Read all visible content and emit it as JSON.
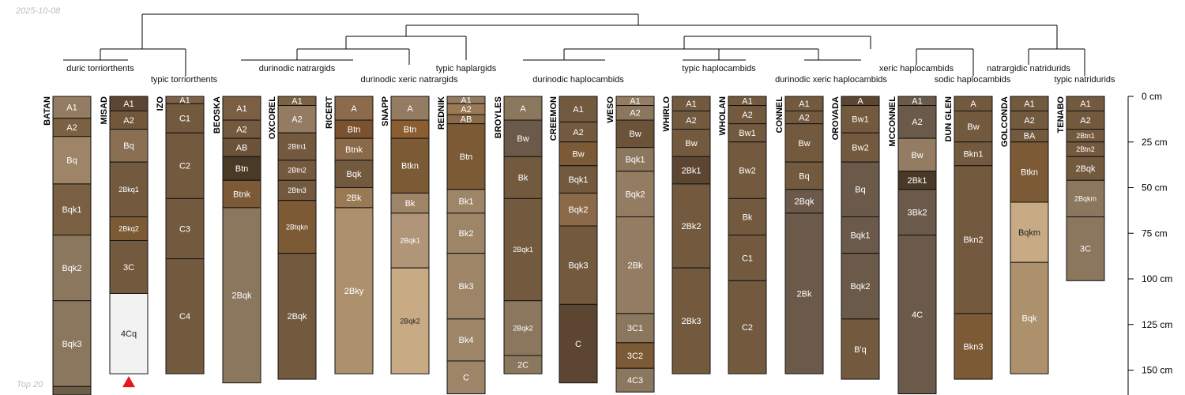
{
  "meta": {
    "date": "2025-10-08",
    "footer": "Top 20"
  },
  "depth_axis": {
    "unit": "cm",
    "ticks": [
      0,
      25,
      50,
      75,
      100,
      125,
      150
    ],
    "labels": [
      "0 cm",
      "25 cm",
      "50 cm",
      "75 cm",
      "100 cm",
      "125 cm",
      "150 cm"
    ]
  },
  "taxa_labels": [
    {
      "id": "duric-torriorthents",
      "text": "duric torriorthents"
    },
    {
      "id": "typic-torriorthents",
      "text": "typic torriorthents"
    },
    {
      "id": "durinodic-natrargids",
      "text": "durinodic natrargids"
    },
    {
      "id": "durinodic-xeric-natrargids",
      "text": "durinodic xeric natrargids"
    },
    {
      "id": "typic-haplargids",
      "text": "typic haplargids"
    },
    {
      "id": "durinodic-haplocambids",
      "text": "durinodic haplocambids"
    },
    {
      "id": "typic-haplocambids",
      "text": "typic haplocambids"
    },
    {
      "id": "durinodic-xeric-haplocambids",
      "text": "durinodic xeric haplocambids"
    },
    {
      "id": "xeric-haplocambids",
      "text": "xeric haplocambids"
    },
    {
      "id": "sodic-haplocambids",
      "text": "sodic haplocambids"
    },
    {
      "id": "natrargidic-natridurids",
      "text": "natrargidic natridurids"
    },
    {
      "id": "typic-natridurids",
      "text": "typic natridurids"
    }
  ],
  "profiles": [
    {
      "name": "BATAN",
      "horizons": [
        {
          "name": "A1",
          "top": 0,
          "bottom": 12,
          "color": "#947c62"
        },
        {
          "name": "A2",
          "top": 12,
          "bottom": 22,
          "color": "#7b6142"
        },
        {
          "name": "Bq",
          "top": 22,
          "bottom": 48,
          "color": "#9e8568"
        },
        {
          "name": "Bqk1",
          "top": 48,
          "bottom": 76,
          "color": "#7a5f42"
        },
        {
          "name": "Bqk2",
          "top": 76,
          "bottom": 112,
          "color": "#8b765e"
        },
        {
          "name": "Bqk3",
          "top": 112,
          "bottom": 159,
          "color": "#8b765e"
        },
        {
          "name": "",
          "top": 159,
          "bottom": 170,
          "color": "#6d5d49"
        }
      ]
    },
    {
      "name": "MISAD",
      "horizons": [
        {
          "name": "A1",
          "top": 0,
          "bottom": 8,
          "color": "#5c4631"
        },
        {
          "name": "A2",
          "top": 8,
          "bottom": 18,
          "color": "#72573c"
        },
        {
          "name": "Bq",
          "top": 18,
          "bottom": 36,
          "color": "#8a6f52"
        },
        {
          "name": "2Bkq1",
          "top": 36,
          "bottom": 66,
          "color": "#735a3f"
        },
        {
          "name": "2Bkq2",
          "top": 66,
          "bottom": 79,
          "color": "#7b5a35"
        },
        {
          "name": "3C",
          "top": 79,
          "bottom": 108,
          "color": "#735a3f"
        },
        {
          "name": "4Cq",
          "top": 108,
          "bottom": 152,
          "color": "#f2f2f2"
        }
      ]
    },
    {
      "name": "IZO",
      "horizons": [
        {
          "name": "A1",
          "top": 0,
          "bottom": 4,
          "color": "#7d6247"
        },
        {
          "name": "C1",
          "top": 4,
          "bottom": 20,
          "color": "#735a3f"
        },
        {
          "name": "C2",
          "top": 20,
          "bottom": 56,
          "color": "#735a3f"
        },
        {
          "name": "C3",
          "top": 56,
          "bottom": 89,
          "color": "#735a3f"
        },
        {
          "name": "C4",
          "top": 89,
          "bottom": 152,
          "color": "#735a3f"
        }
      ]
    },
    {
      "name": "BEOSKA",
      "horizons": [
        {
          "name": "A1",
          "top": 0,
          "bottom": 13,
          "color": "#7a5f42"
        },
        {
          "name": "A2",
          "top": 13,
          "bottom": 23,
          "color": "#735a3f"
        },
        {
          "name": "AB",
          "top": 23,
          "bottom": 33,
          "color": "#6b5239"
        },
        {
          "name": "Btn",
          "top": 33,
          "bottom": 46,
          "color": "#4a3927"
        },
        {
          "name": "Btnk",
          "top": 46,
          "bottom": 61,
          "color": "#7b5a35"
        },
        {
          "name": "2Bqk",
          "top": 61,
          "bottom": 157,
          "color": "#8b765e"
        }
      ]
    },
    {
      "name": "OXCOREL",
      "horizons": [
        {
          "name": "A1",
          "top": 0,
          "bottom": 5,
          "color": "#7b6142"
        },
        {
          "name": "A2",
          "top": 5,
          "bottom": 20,
          "color": "#947c62"
        },
        {
          "name": "2Btn1",
          "top": 20,
          "bottom": 35,
          "color": "#735a3f"
        },
        {
          "name": "2Btn2",
          "top": 35,
          "bottom": 46,
          "color": "#735a3f"
        },
        {
          "name": "2Btn3",
          "top": 46,
          "bottom": 57,
          "color": "#735a3f"
        },
        {
          "name": "2Btqkn",
          "top": 57,
          "bottom": 86,
          "color": "#7b5a35"
        },
        {
          "name": "2Bqk",
          "top": 86,
          "bottom": 155,
          "color": "#735a3f"
        }
      ]
    },
    {
      "name": "RICERT",
      "horizons": [
        {
          "name": "A",
          "top": 0,
          "bottom": 13,
          "color": "#8b6b4b"
        },
        {
          "name": "Btn",
          "top": 13,
          "bottom": 23,
          "color": "#7b5230"
        },
        {
          "name": "Btnk",
          "top": 23,
          "bottom": 35,
          "color": "#8a6a48"
        },
        {
          "name": "Bqk",
          "top": 35,
          "bottom": 50,
          "color": "#735a3f"
        },
        {
          "name": "2Bk",
          "top": 50,
          "bottom": 61,
          "color": "#9a7a55"
        },
        {
          "name": "2Bky",
          "top": 61,
          "bottom": 152,
          "color": "#ad916d"
        }
      ]
    },
    {
      "name": "SNAPP",
      "horizons": [
        {
          "name": "A",
          "top": 0,
          "bottom": 13,
          "color": "#947c62"
        },
        {
          "name": "Btn",
          "top": 13,
          "bottom": 23,
          "color": "#8a5e30"
        },
        {
          "name": "Btkn",
          "top": 23,
          "bottom": 53,
          "color": "#7b5a35"
        },
        {
          "name": "Bk",
          "top": 53,
          "bottom": 64,
          "color": "#9e8568"
        },
        {
          "name": "2Bqk1",
          "top": 64,
          "bottom": 94,
          "color": "#b09579"
        },
        {
          "name": "2Bqk2",
          "top": 94,
          "bottom": 152,
          "color": "#c8ab84"
        }
      ]
    },
    {
      "name": "REDNIK",
      "horizons": [
        {
          "name": "A1",
          "top": 0,
          "bottom": 4,
          "color": "#947c62"
        },
        {
          "name": "A2",
          "top": 4,
          "bottom": 10,
          "color": "#9a7a55"
        },
        {
          "name": "AB",
          "top": 10,
          "bottom": 15,
          "color": "#8a6a48"
        },
        {
          "name": "Btn",
          "top": 15,
          "bottom": 51,
          "color": "#7b5a35"
        },
        {
          "name": "Bk1",
          "top": 51,
          "bottom": 64,
          "color": "#9e8568"
        },
        {
          "name": "Bk2",
          "top": 64,
          "bottom": 86,
          "color": "#9e8568"
        },
        {
          "name": "Bk3",
          "top": 86,
          "bottom": 122,
          "color": "#9e8568"
        },
        {
          "name": "Bk4",
          "top": 122,
          "bottom": 145,
          "color": "#9e8568"
        },
        {
          "name": "C",
          "top": 145,
          "bottom": 163,
          "color": "#9e8568"
        }
      ]
    },
    {
      "name": "BROYLES",
      "horizons": [
        {
          "name": "A",
          "top": 0,
          "bottom": 13,
          "color": "#8b765e"
        },
        {
          "name": "Bw",
          "top": 13,
          "bottom": 33,
          "color": "#6b5a4a"
        },
        {
          "name": "Bk",
          "top": 33,
          "bottom": 56,
          "color": "#735a3f"
        },
        {
          "name": "2Bqk1",
          "top": 56,
          "bottom": 112,
          "color": "#735a3f"
        },
        {
          "name": "2Bqk2",
          "top": 112,
          "bottom": 142,
          "color": "#8b765e"
        },
        {
          "name": "2C",
          "top": 142,
          "bottom": 152,
          "color": "#8b765e"
        }
      ]
    },
    {
      "name": "CREEMON",
      "horizons": [
        {
          "name": "A1",
          "top": 0,
          "bottom": 14,
          "color": "#735a3f"
        },
        {
          "name": "A2",
          "top": 14,
          "bottom": 25,
          "color": "#735a3f"
        },
        {
          "name": "Bw",
          "top": 25,
          "bottom": 38,
          "color": "#7b5a35"
        },
        {
          "name": "Bqk1",
          "top": 38,
          "bottom": 53,
          "color": "#735a3f"
        },
        {
          "name": "Bqk2",
          "top": 53,
          "bottom": 71,
          "color": "#8a6a48"
        },
        {
          "name": "Bqk3",
          "top": 71,
          "bottom": 114,
          "color": "#735a3f"
        },
        {
          "name": "C",
          "top": 114,
          "bottom": 157,
          "color": "#5c4631"
        }
      ]
    },
    {
      "name": "WESO",
      "horizons": [
        {
          "name": "A1",
          "top": 0,
          "bottom": 5,
          "color": "#947c62"
        },
        {
          "name": "A2",
          "top": 5,
          "bottom": 13,
          "color": "#8b765e"
        },
        {
          "name": "Bw",
          "top": 13,
          "bottom": 28,
          "color": "#6b5239"
        },
        {
          "name": "Bqk1",
          "top": 28,
          "bottom": 41,
          "color": "#8b765e"
        },
        {
          "name": "Bqk2",
          "top": 41,
          "bottom": 66,
          "color": "#947c62"
        },
        {
          "name": "2Bk",
          "top": 66,
          "bottom": 119,
          "color": "#947c62"
        },
        {
          "name": "3C1",
          "top": 119,
          "bottom": 135,
          "color": "#8b765e"
        },
        {
          "name": "3C2",
          "top": 135,
          "bottom": 149,
          "color": "#7b5a35"
        },
        {
          "name": "4C3",
          "top": 149,
          "bottom": 162,
          "color": "#8b765e"
        }
      ]
    },
    {
      "name": "WHIRLO",
      "horizons": [
        {
          "name": "A1",
          "top": 0,
          "bottom": 8,
          "color": "#735a3f"
        },
        {
          "name": "A2",
          "top": 8,
          "bottom": 18,
          "color": "#735a3f"
        },
        {
          "name": "Bw",
          "top": 18,
          "bottom": 33,
          "color": "#735a3f"
        },
        {
          "name": "2Bk1",
          "top": 33,
          "bottom": 48,
          "color": "#5c4631"
        },
        {
          "name": "2Bk2",
          "top": 48,
          "bottom": 94,
          "color": "#735a3f"
        },
        {
          "name": "2Bk3",
          "top": 94,
          "bottom": 152,
          "color": "#735a3f"
        }
      ]
    },
    {
      "name": "WHOLAN",
      "horizons": [
        {
          "name": "A1",
          "top": 0,
          "bottom": 5,
          "color": "#735a3f"
        },
        {
          "name": "A2",
          "top": 5,
          "bottom": 15,
          "color": "#735a3f"
        },
        {
          "name": "Bw1",
          "top": 15,
          "bottom": 25,
          "color": "#735a3f"
        },
        {
          "name": "Bw2",
          "top": 25,
          "bottom": 56,
          "color": "#735a3f"
        },
        {
          "name": "Bk",
          "top": 56,
          "bottom": 76,
          "color": "#735a3f"
        },
        {
          "name": "C1",
          "top": 76,
          "bottom": 101,
          "color": "#735a3f"
        },
        {
          "name": "C2",
          "top": 101,
          "bottom": 152,
          "color": "#735a3f"
        }
      ]
    },
    {
      "name": "CONNEL",
      "horizons": [
        {
          "name": "A1",
          "top": 0,
          "bottom": 8,
          "color": "#735a3f"
        },
        {
          "name": "A2",
          "top": 8,
          "bottom": 15,
          "color": "#735a3f"
        },
        {
          "name": "Bw",
          "top": 15,
          "bottom": 36,
          "color": "#735a3f"
        },
        {
          "name": "Bq",
          "top": 36,
          "bottom": 51,
          "color": "#735a3f"
        },
        {
          "name": "2Bqk",
          "top": 51,
          "bottom": 64,
          "color": "#6b5a4a"
        },
        {
          "name": "2Bk",
          "top": 64,
          "bottom": 152,
          "color": "#6b5a4a"
        }
      ]
    },
    {
      "name": "OROVADA",
      "horizons": [
        {
          "name": "A",
          "top": 0,
          "bottom": 5,
          "color": "#5c4631"
        },
        {
          "name": "Bw1",
          "top": 5,
          "bottom": 20,
          "color": "#735a3f"
        },
        {
          "name": "Bw2",
          "top": 20,
          "bottom": 36,
          "color": "#735a3f"
        },
        {
          "name": "Bq",
          "top": 36,
          "bottom": 66,
          "color": "#6b5a4a"
        },
        {
          "name": "Bqk1",
          "top": 66,
          "bottom": 86,
          "color": "#6b5a4a"
        },
        {
          "name": "Bqk2",
          "top": 86,
          "bottom": 122,
          "color": "#6b5a4a"
        },
        {
          "name": "B'q",
          "top": 122,
          "bottom": 155,
          "color": "#735a3f"
        }
      ]
    },
    {
      "name": "MCCONNEL",
      "horizons": [
        {
          "name": "A1",
          "top": 0,
          "bottom": 5,
          "color": "#6b5a4a"
        },
        {
          "name": "A2",
          "top": 5,
          "bottom": 23,
          "color": "#6b5a4a"
        },
        {
          "name": "Bw",
          "top": 23,
          "bottom": 41,
          "color": "#947c62"
        },
        {
          "name": "2Bk1",
          "top": 41,
          "bottom": 51,
          "color": "#4a3927"
        },
        {
          "name": "3Bk2",
          "top": 51,
          "bottom": 76,
          "color": "#6b5a4a"
        },
        {
          "name": "4C",
          "top": 76,
          "bottom": 163,
          "color": "#6b5a4a"
        }
      ]
    },
    {
      "name": "DUN GLEN",
      "horizons": [
        {
          "name": "A",
          "top": 0,
          "bottom": 8,
          "color": "#735a3f"
        },
        {
          "name": "Bw",
          "top": 8,
          "bottom": 25,
          "color": "#735a3f"
        },
        {
          "name": "Bkn1",
          "top": 25,
          "bottom": 38,
          "color": "#735a3f"
        },
        {
          "name": "Bkn2",
          "top": 38,
          "bottom": 119,
          "color": "#735a3f"
        },
        {
          "name": "Bkn3",
          "top": 119,
          "bottom": 155,
          "color": "#7b5a35"
        }
      ]
    },
    {
      "name": "GOLCONDA",
      "horizons": [
        {
          "name": "A1",
          "top": 0,
          "bottom": 8,
          "color": "#735a3f"
        },
        {
          "name": "A2",
          "top": 8,
          "bottom": 18,
          "color": "#735a3f"
        },
        {
          "name": "BA",
          "top": 18,
          "bottom": 25,
          "color": "#735a3f"
        },
        {
          "name": "Btkn",
          "top": 25,
          "bottom": 58,
          "color": "#7b5a35"
        },
        {
          "name": "Bqkm",
          "top": 58,
          "bottom": 91,
          "color": "#c8ab84"
        },
        {
          "name": "Bqk",
          "top": 91,
          "bottom": 152,
          "color": "#ad916d"
        }
      ]
    },
    {
      "name": "TENABO",
      "horizons": [
        {
          "name": "A1",
          "top": 0,
          "bottom": 8,
          "color": "#735a3f"
        },
        {
          "name": "A2",
          "top": 8,
          "bottom": 18,
          "color": "#735a3f"
        },
        {
          "name": "2Btn1",
          "top": 18,
          "bottom": 25,
          "color": "#735a3f"
        },
        {
          "name": "2Btn2",
          "top": 25,
          "bottom": 33,
          "color": "#735a3f"
        },
        {
          "name": "2Bqk",
          "top": 33,
          "bottom": 46,
          "color": "#735a3f"
        },
        {
          "name": "2Bqkm",
          "top": 46,
          "bottom": 66,
          "color": "#8b765e"
        },
        {
          "name": "3C",
          "top": 66,
          "bottom": 101,
          "color": "#8b765e"
        }
      ]
    }
  ],
  "misad_marker_color": "#e8161b"
}
